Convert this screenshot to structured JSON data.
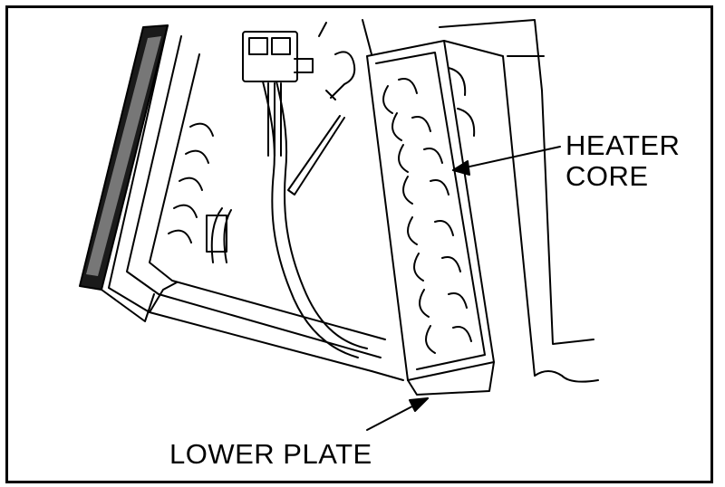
{
  "figure": {
    "labels": {
      "heater_line1": "HEATER",
      "heater_line2": "CORE",
      "lower_plate": "LOWER PLATE"
    },
    "colors": {
      "ink": "#000000",
      "paper": "#ffffff"
    }
  }
}
